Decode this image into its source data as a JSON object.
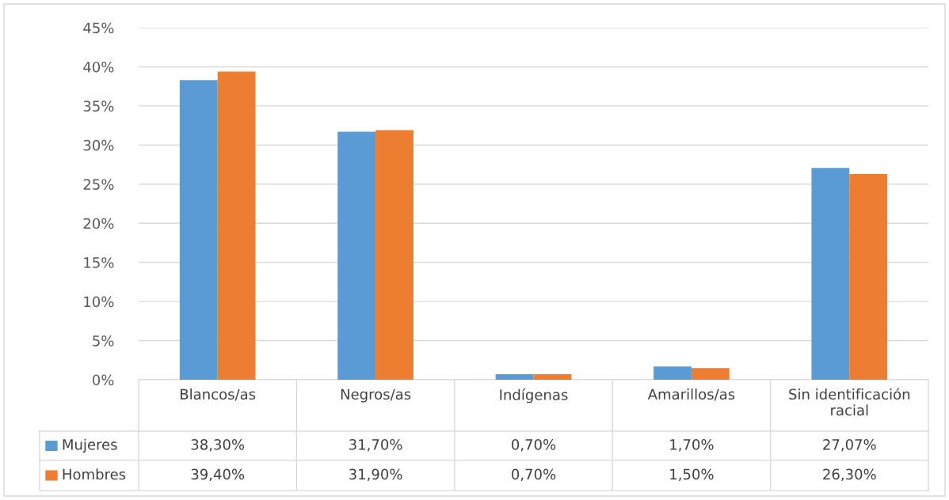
{
  "chart_data": {
    "type": "bar",
    "categories": [
      "Blancos/as",
      "Negros/as",
      "Indígenas",
      "Amarillos/as",
      "Sin identificación racial"
    ],
    "series": [
      {
        "name": "Mujeres",
        "color": "#5b9bd5",
        "values": [
          38.3,
          31.7,
          0.7,
          1.7,
          27.07
        ],
        "value_labels": [
          "38,30%",
          "31,70%",
          "0,70%",
          "1,70%",
          "27,07%"
        ]
      },
      {
        "name": "Hombres",
        "color": "#ed7d31",
        "values": [
          39.4,
          31.9,
          0.7,
          1.5,
          26.3
        ],
        "value_labels": [
          "39,40%",
          "31,90%",
          "0,70%",
          "1,50%",
          "26,30%"
        ]
      }
    ],
    "ylim": [
      0,
      45
    ],
    "yticks": [
      {
        "value": 0,
        "label": "0%"
      },
      {
        "value": 5,
        "label": "5%"
      },
      {
        "value": 10,
        "label": "10%"
      },
      {
        "value": 15,
        "label": "15%"
      },
      {
        "value": 20,
        "label": "20%"
      },
      {
        "value": 25,
        "label": "25%"
      },
      {
        "value": 30,
        "label": "30%"
      },
      {
        "value": 35,
        "label": "35%"
      },
      {
        "value": 40,
        "label": "40%"
      },
      {
        "value": 45,
        "label": "45%"
      }
    ],
    "grid": "y",
    "legend": "bottom"
  }
}
